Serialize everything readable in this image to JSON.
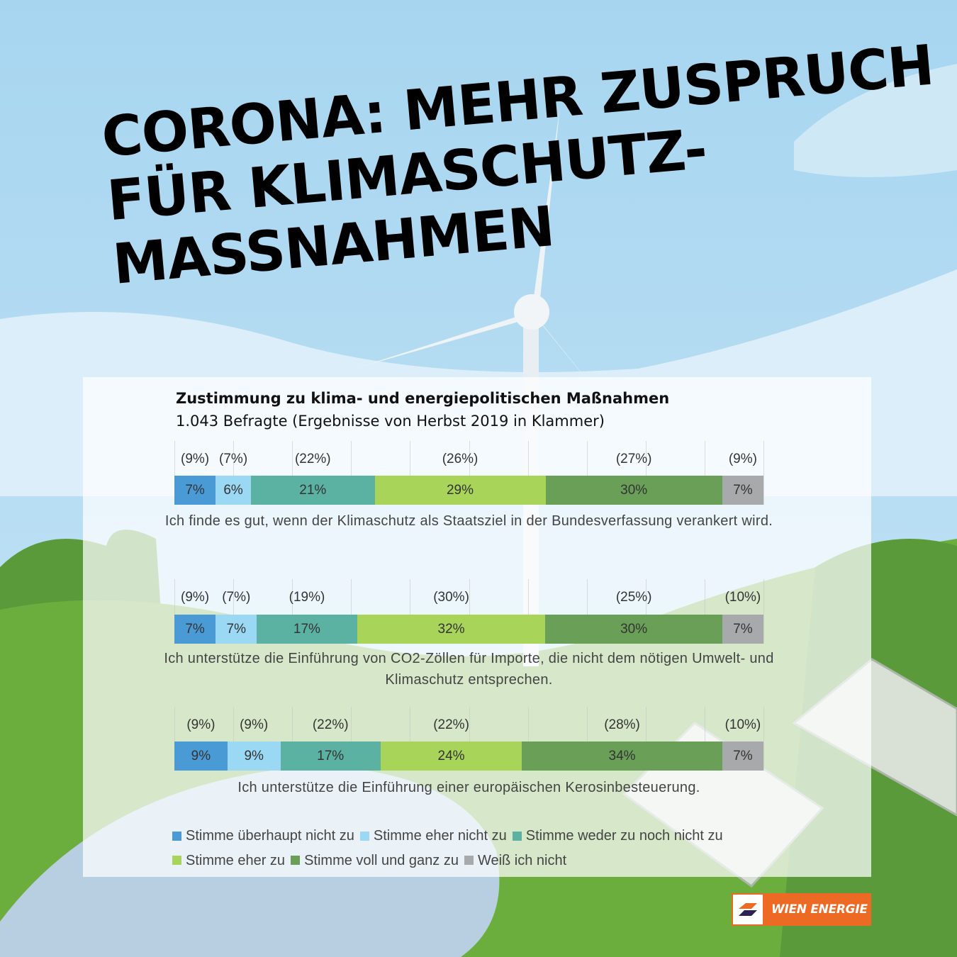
{
  "headline": [
    "CORONA: MEHR ZUSPRUCH",
    "FÜR KLIMASCHUTZ-",
    "MASSNAHMEN"
  ],
  "chart_data": {
    "type": "bar",
    "orientation": "horizontal-stacked-100",
    "title": "Zustimmung zu klima- und energiepolitischen Maßnahmen",
    "subtitle": "1.043 Befragte (Ergebnisse von Herbst 2019 in Klammer)",
    "series": [
      {
        "name": "Stimme überhaupt nicht zu",
        "color": "#4a9ad6"
      },
      {
        "name": "Stimme eher nicht zu",
        "color": "#9bd8f4"
      },
      {
        "name": "Stimme weder zu noch nicht zu",
        "color": "#5bb1a2"
      },
      {
        "name": "Stimme eher zu",
        "color": "#a8d45a"
      },
      {
        "name": "Stimme voll und ganz zu",
        "color": "#6a9f58"
      },
      {
        "name": "Weiß ich nicht",
        "color": "#a7a9ab"
      }
    ],
    "categories": [
      {
        "statement": "Ich finde es gut, wenn der Klimaschutz als Staatsziel in der Bundesverfassung verankert wird.",
        "values": [
          7,
          6,
          21,
          29,
          30,
          7
        ],
        "values_2019": [
          9,
          7,
          22,
          26,
          27,
          9
        ]
      },
      {
        "statement": "Ich unterstütze die Einführung von CO2-Zöllen für Importe, die nicht dem nötigen Umwelt- und Klimaschutz entsprechen.",
        "values": [
          7,
          7,
          17,
          32,
          30,
          7
        ],
        "values_2019": [
          9,
          7,
          19,
          30,
          25,
          10
        ]
      },
      {
        "statement": "Ich unterstütze die Einführung einer europäischen Kerosinbesteuerung.",
        "values": [
          9,
          9,
          17,
          24,
          34,
          7
        ],
        "values_2019": [
          9,
          9,
          22,
          22,
          28,
          10
        ]
      }
    ],
    "unit": "%",
    "legend": "bottom"
  },
  "logo": "WIEN ENERGIE"
}
